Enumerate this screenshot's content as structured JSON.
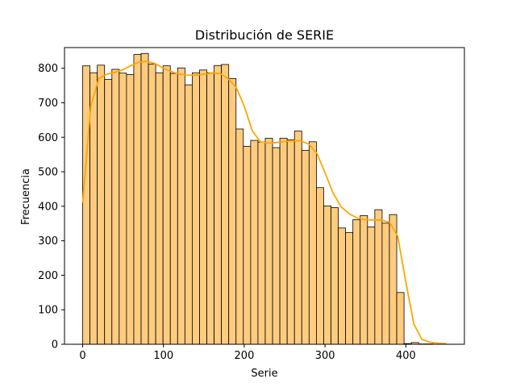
{
  "chart_data": {
    "type": "bar",
    "title": "Distribución de SERIE",
    "xlabel": "Serie",
    "ylabel": "Frecuencia",
    "xlim": [
      -22.5,
      472.5
    ],
    "ylim": [
      0,
      860
    ],
    "x_ticks": [
      0,
      100,
      200,
      300,
      400
    ],
    "y_ticks": [
      0,
      100,
      200,
      300,
      400,
      500,
      600,
      700,
      800
    ],
    "bin_width": 9.04,
    "bin_starts": [
      0,
      9.04,
      18.08,
      27.12,
      36.16,
      45.2,
      54.24,
      63.28,
      72.32,
      81.36,
      90.4,
      99.44,
      108.48,
      117.52,
      126.56,
      135.6,
      144.64,
      153.68,
      162.72,
      171.76,
      180.8,
      189.84,
      198.88,
      207.92,
      216.96,
      226.0,
      235.04,
      244.08,
      253.12,
      262.16,
      271.2,
      280.24,
      289.28,
      298.32,
      307.36,
      316.4,
      325.44,
      334.48,
      343.52,
      352.56,
      361.6,
      370.64,
      379.68,
      388.72,
      397.76,
      406.8,
      415.84,
      424.88,
      433.92,
      442.96
    ],
    "values": [
      807,
      787,
      809,
      768,
      797,
      786,
      782,
      840,
      843,
      812,
      787,
      807,
      785,
      801,
      752,
      787,
      795,
      787,
      808,
      811,
      770,
      624,
      574,
      591,
      586,
      597,
      570,
      597,
      593,
      618,
      562,
      587,
      454,
      401,
      396,
      337,
      324,
      361,
      373,
      340,
      390,
      351,
      376,
      150,
      2,
      5,
      1,
      1,
      0,
      0
    ],
    "kde": {
      "x": [
        0,
        10,
        20,
        30,
        40,
        50,
        60,
        70,
        80,
        90,
        100,
        110,
        120,
        130,
        140,
        150,
        160,
        170,
        180,
        190,
        200,
        210,
        220,
        230,
        240,
        250,
        260,
        270,
        280,
        290,
        300,
        310,
        320,
        330,
        340,
        350,
        360,
        370,
        380,
        390,
        400,
        410,
        420,
        430,
        440,
        450
      ],
      "y": [
        410,
        690,
        770,
        783,
        788,
        796,
        808,
        818,
        820,
        813,
        800,
        790,
        783,
        780,
        780,
        783,
        786,
        785,
        770,
        745,
        690,
        618,
        587,
        583,
        585,
        588,
        590,
        590,
        580,
        553,
        497,
        438,
        398,
        378,
        366,
        361,
        360,
        360,
        353,
        313,
        180,
        58,
        14,
        6,
        3,
        2
      ]
    },
    "colors": {
      "bar_fill": "#ffcc7f",
      "bar_edge": "#000000",
      "kde_line": "#ffa500"
    },
    "grid": false,
    "legend": "none"
  }
}
